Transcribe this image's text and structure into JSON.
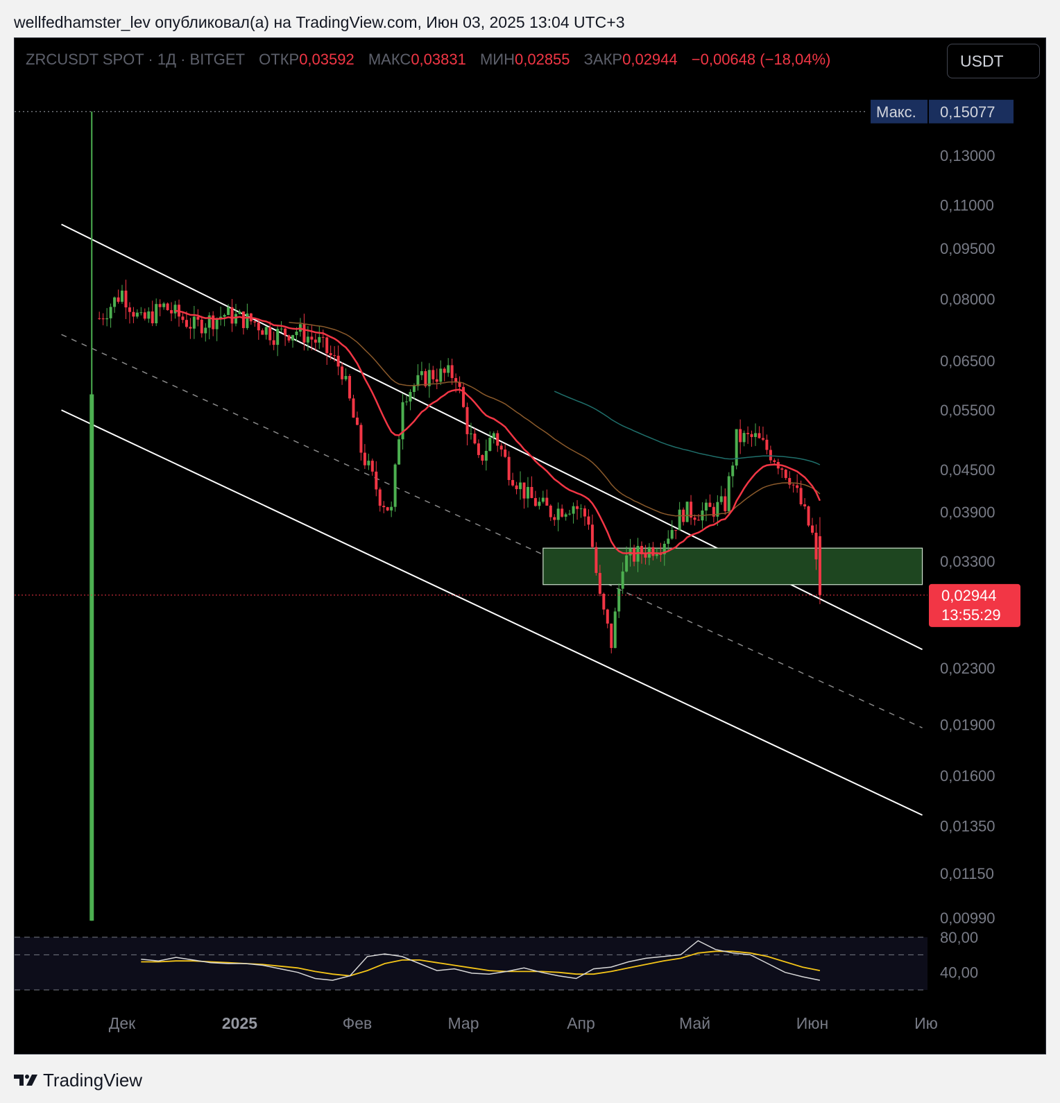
{
  "header": {
    "publisher_line": "wellfedhamster_lev опубликовал(а) на TradingView.com, Июн 03, 2025 13:04 UTC+3"
  },
  "legend": {
    "symbol": "ZRCUSDT SPOT · 1Д · BITGET",
    "open_label": "ОТКР",
    "open_value": "0,03592",
    "high_label": "МАКС",
    "high_value": "0,03831",
    "low_label": "МИН",
    "low_value": "0,02855",
    "close_label": "ЗАКР",
    "close_value": "0,02944",
    "change": "−0,00648 (−18,04%)"
  },
  "toolbar": {
    "currency": "USDT"
  },
  "footer": {
    "brand": "TradingView"
  },
  "colors": {
    "up": "#4caf50",
    "down": "#f23645",
    "ema_fast": "#f23645",
    "ema_mid": "#8b5a2b",
    "ema_slow": "#1f6f6b",
    "rsi": "#d9d9d9",
    "rsi_ma": "#f5c518",
    "zone": "#1e4620",
    "max_badge": "#1a2f5e"
  },
  "chart_data": {
    "type": "candlestick",
    "symbol": "ZRCUSDT",
    "timeframe": "1D",
    "y_scale": "log",
    "ylim": [
      0.0094,
      0.155
    ],
    "x_axis_labels": [
      "Дек",
      "2025",
      "Фев",
      "Мар",
      "Апр",
      "Май",
      "Июн",
      "Ию"
    ],
    "y_ticks": [
      "0,13000",
      "0,11000",
      "0,09500",
      "0,08000",
      "0,06500",
      "0,05500",
      "0,04500",
      "0,03900",
      "0,03300",
      "0,02300",
      "0,01900",
      "0,01600",
      "0,01350",
      "0,01150",
      "0,00990"
    ],
    "max_label": "Макс.",
    "max_value": "0,15077",
    "last_price": "0,02944",
    "countdown": "13:55:29",
    "close_points": [
      {
        "date": "2024-11-25",
        "close": 0.075
      },
      {
        "date": "2024-12-01",
        "close": 0.082
      },
      {
        "date": "2024-12-06",
        "close": 0.074
      },
      {
        "date": "2024-12-12",
        "close": 0.078
      },
      {
        "date": "2024-12-20",
        "close": 0.073
      },
      {
        "date": "2024-12-28",
        "close": 0.076
      },
      {
        "date": "2025-01-05",
        "close": 0.074
      },
      {
        "date": "2025-01-10",
        "close": 0.071
      },
      {
        "date": "2025-01-16",
        "close": 0.072
      },
      {
        "date": "2025-01-22",
        "close": 0.069
      },
      {
        "date": "2025-01-28",
        "close": 0.063
      },
      {
        "date": "2025-02-02",
        "close": 0.048
      },
      {
        "date": "2025-02-07",
        "close": 0.041
      },
      {
        "date": "2025-02-10",
        "close": 0.039
      },
      {
        "date": "2025-02-13",
        "close": 0.058
      },
      {
        "date": "2025-02-20",
        "close": 0.062
      },
      {
        "date": "2025-02-27",
        "close": 0.062
      },
      {
        "date": "2025-03-02",
        "close": 0.052
      },
      {
        "date": "2025-03-05",
        "close": 0.046
      },
      {
        "date": "2025-03-09",
        "close": 0.051
      },
      {
        "date": "2025-03-13",
        "close": 0.045
      },
      {
        "date": "2025-03-18",
        "close": 0.041
      },
      {
        "date": "2025-03-24",
        "close": 0.039
      },
      {
        "date": "2025-03-30",
        "close": 0.04
      },
      {
        "date": "2025-04-03",
        "close": 0.038
      },
      {
        "date": "2025-04-06",
        "close": 0.029
      },
      {
        "date": "2025-04-09",
        "close": 0.025
      },
      {
        "date": "2025-04-12",
        "close": 0.033
      },
      {
        "date": "2025-04-17",
        "close": 0.034
      },
      {
        "date": "2025-04-22",
        "close": 0.035
      },
      {
        "date": "2025-04-28",
        "close": 0.039
      },
      {
        "date": "2025-05-04",
        "close": 0.039
      },
      {
        "date": "2025-05-09",
        "close": 0.04
      },
      {
        "date": "2025-05-12",
        "close": 0.05
      },
      {
        "date": "2025-05-17",
        "close": 0.05
      },
      {
        "date": "2025-05-22",
        "close": 0.047
      },
      {
        "date": "2025-05-26",
        "close": 0.044
      },
      {
        "date": "2025-05-29",
        "close": 0.04
      },
      {
        "date": "2025-06-01",
        "close": 0.036
      },
      {
        "date": "2025-06-03",
        "close": 0.02944
      }
    ],
    "channel": {
      "upper": [
        {
          "date": "2024-11-15",
          "price": 0.103
        },
        {
          "date": "2025-06-30",
          "price": 0.0245
        }
      ],
      "middle": [
        {
          "date": "2024-11-15",
          "price": 0.071
        },
        {
          "date": "2025-06-30",
          "price": 0.0188
        }
      ],
      "lower": [
        {
          "date": "2024-11-15",
          "price": 0.055
        },
        {
          "date": "2025-06-30",
          "price": 0.014
        }
      ]
    },
    "zone": {
      "from": "2025-03-22",
      "to": "2025-06-30",
      "low": 0.0305,
      "high": 0.0345
    },
    "rsi": {
      "levels": [
        "80,00",
        "40,00"
      ],
      "values": [
        55,
        53,
        57,
        54,
        51,
        50,
        50,
        48,
        44,
        40,
        33,
        31,
        36,
        58,
        61,
        58,
        50,
        42,
        44,
        39,
        38,
        41,
        45,
        40,
        36,
        33,
        44,
        46,
        52,
        56,
        58,
        60,
        76,
        66,
        62,
        60,
        50,
        40,
        35,
        31
      ],
      "ma": [
        52,
        52,
        53,
        53,
        52,
        51,
        50,
        49,
        47,
        45,
        41,
        38,
        36,
        42,
        50,
        54,
        54,
        51,
        48,
        45,
        42,
        41,
        41,
        41,
        40,
        38,
        38,
        41,
        45,
        49,
        53,
        56,
        62,
        64,
        64,
        62,
        58,
        52,
        46,
        42
      ]
    }
  }
}
